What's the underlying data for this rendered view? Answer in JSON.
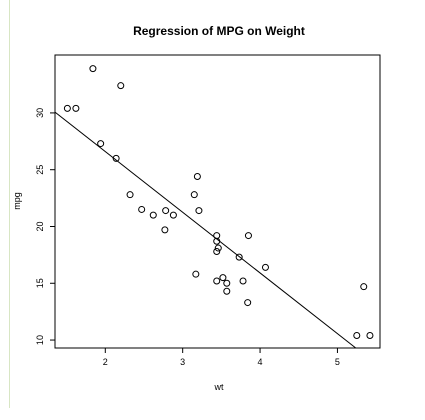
{
  "chart_data": {
    "type": "scatter",
    "title": "Regression of MPG on Weight",
    "xlabel": "wt",
    "ylabel": "mpg",
    "xlim": [
      1.35,
      5.55
    ],
    "ylim": [
      9.3,
      35.1
    ],
    "x_ticks": [
      2,
      3,
      4,
      5
    ],
    "y_ticks": [
      10,
      15,
      20,
      25,
      30
    ],
    "grid": false,
    "legend": "none",
    "series": [
      {
        "points": [
          [
            1.51,
            30.4
          ],
          [
            1.62,
            30.4
          ],
          [
            1.84,
            33.9
          ],
          [
            1.94,
            27.3
          ],
          [
            2.14,
            26.0
          ],
          [
            2.2,
            32.4
          ],
          [
            2.32,
            22.8
          ],
          [
            2.47,
            21.5
          ],
          [
            2.62,
            21.0
          ],
          [
            2.78,
            21.4
          ],
          [
            2.77,
            19.7
          ],
          [
            2.88,
            21.0
          ],
          [
            3.15,
            22.8
          ],
          [
            3.17,
            15.8
          ],
          [
            3.19,
            24.4
          ],
          [
            3.21,
            21.4
          ],
          [
            3.44,
            18.7
          ],
          [
            3.44,
            19.2
          ],
          [
            3.44,
            17.8
          ],
          [
            3.44,
            15.2
          ],
          [
            3.46,
            18.1
          ],
          [
            3.52,
            15.5
          ],
          [
            3.57,
            15.0
          ],
          [
            3.57,
            14.3
          ],
          [
            3.73,
            17.3
          ],
          [
            3.78,
            15.2
          ],
          [
            3.84,
            13.3
          ],
          [
            3.85,
            19.2
          ],
          [
            4.07,
            16.4
          ],
          [
            5.25,
            10.4
          ],
          [
            5.34,
            14.7
          ],
          [
            5.42,
            10.4
          ]
        ]
      }
    ],
    "regression_line": {
      "intercept": 37.285,
      "slope": -5.344
    }
  },
  "colors": {
    "points": "#000000",
    "line": "#000000",
    "background": "#ffffff"
  }
}
